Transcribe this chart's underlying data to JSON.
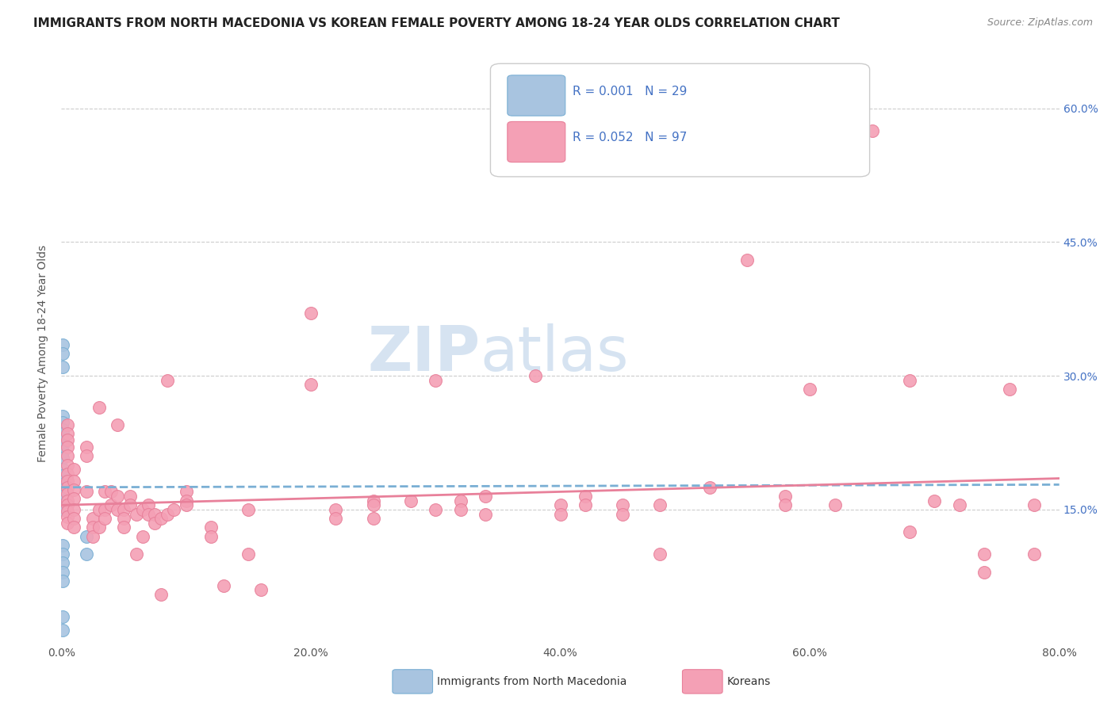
{
  "title": "IMMIGRANTS FROM NORTH MACEDONIA VS KOREAN FEMALE POVERTY AMONG 18-24 YEAR OLDS CORRELATION CHART",
  "source": "Source: ZipAtlas.com",
  "ylabel": "Female Poverty Among 18-24 Year Olds",
  "xlabel_ticks": [
    "0.0%",
    "20.0%",
    "40.0%",
    "60.0%",
    "80.0%"
  ],
  "xlabel_vals": [
    0.0,
    0.2,
    0.4,
    0.6,
    0.8
  ],
  "ylabel_ticks_right": [
    "60.0%",
    "45.0%",
    "30.0%",
    "15.0%"
  ],
  "ylabel_right_vals": [
    0.6,
    0.45,
    0.3,
    0.15
  ],
  "xlim": [
    0.0,
    0.8
  ],
  "ylim": [
    0.0,
    0.65
  ],
  "color_blue": "#a8c4e0",
  "color_pink": "#f4a0b5",
  "edge_blue": "#7aafd4",
  "edge_pink": "#e8809a",
  "trendline_blue_color": "#7aafd4",
  "trendline_pink_color": "#e8809a",
  "watermark": "ZIPatlas",
  "blue_points": [
    [
      0.001,
      0.335
    ],
    [
      0.001,
      0.325
    ],
    [
      0.001,
      0.31
    ],
    [
      0.001,
      0.255
    ],
    [
      0.001,
      0.248
    ],
    [
      0.001,
      0.24
    ],
    [
      0.001,
      0.235
    ],
    [
      0.001,
      0.228
    ],
    [
      0.001,
      0.222
    ],
    [
      0.001,
      0.215
    ],
    [
      0.001,
      0.208
    ],
    [
      0.001,
      0.195
    ],
    [
      0.001,
      0.188
    ],
    [
      0.001,
      0.182
    ],
    [
      0.001,
      0.178
    ],
    [
      0.001,
      0.172
    ],
    [
      0.001,
      0.165
    ],
    [
      0.001,
      0.16
    ],
    [
      0.001,
      0.155
    ],
    [
      0.001,
      0.15
    ],
    [
      0.001,
      0.11
    ],
    [
      0.001,
      0.1
    ],
    [
      0.001,
      0.09
    ],
    [
      0.001,
      0.08
    ],
    [
      0.001,
      0.07
    ],
    [
      0.001,
      0.03
    ],
    [
      0.001,
      0.015
    ],
    [
      0.02,
      0.12
    ],
    [
      0.02,
      0.1
    ]
  ],
  "pink_points": [
    [
      0.005,
      0.245
    ],
    [
      0.005,
      0.235
    ],
    [
      0.005,
      0.228
    ],
    [
      0.005,
      0.22
    ],
    [
      0.005,
      0.21
    ],
    [
      0.005,
      0.2
    ],
    [
      0.005,
      0.19
    ],
    [
      0.005,
      0.182
    ],
    [
      0.005,
      0.175
    ],
    [
      0.005,
      0.168
    ],
    [
      0.005,
      0.16
    ],
    [
      0.005,
      0.155
    ],
    [
      0.005,
      0.148
    ],
    [
      0.005,
      0.142
    ],
    [
      0.005,
      0.135
    ],
    [
      0.01,
      0.195
    ],
    [
      0.01,
      0.182
    ],
    [
      0.01,
      0.172
    ],
    [
      0.01,
      0.162
    ],
    [
      0.01,
      0.15
    ],
    [
      0.01,
      0.14
    ],
    [
      0.01,
      0.13
    ],
    [
      0.02,
      0.22
    ],
    [
      0.02,
      0.21
    ],
    [
      0.02,
      0.17
    ],
    [
      0.025,
      0.14
    ],
    [
      0.025,
      0.13
    ],
    [
      0.025,
      0.12
    ],
    [
      0.03,
      0.265
    ],
    [
      0.03,
      0.15
    ],
    [
      0.03,
      0.13
    ],
    [
      0.035,
      0.17
    ],
    [
      0.035,
      0.15
    ],
    [
      0.035,
      0.14
    ],
    [
      0.04,
      0.17
    ],
    [
      0.04,
      0.155
    ],
    [
      0.045,
      0.245
    ],
    [
      0.045,
      0.165
    ],
    [
      0.045,
      0.15
    ],
    [
      0.05,
      0.15
    ],
    [
      0.05,
      0.14
    ],
    [
      0.05,
      0.13
    ],
    [
      0.055,
      0.165
    ],
    [
      0.055,
      0.155
    ],
    [
      0.06,
      0.145
    ],
    [
      0.06,
      0.1
    ],
    [
      0.065,
      0.15
    ],
    [
      0.065,
      0.12
    ],
    [
      0.07,
      0.155
    ],
    [
      0.07,
      0.145
    ],
    [
      0.075,
      0.145
    ],
    [
      0.075,
      0.135
    ],
    [
      0.08,
      0.055
    ],
    [
      0.08,
      0.14
    ],
    [
      0.085,
      0.295
    ],
    [
      0.085,
      0.145
    ],
    [
      0.09,
      0.15
    ],
    [
      0.1,
      0.17
    ],
    [
      0.1,
      0.16
    ],
    [
      0.1,
      0.155
    ],
    [
      0.12,
      0.13
    ],
    [
      0.12,
      0.12
    ],
    [
      0.13,
      0.065
    ],
    [
      0.15,
      0.15
    ],
    [
      0.15,
      0.1
    ],
    [
      0.16,
      0.06
    ],
    [
      0.2,
      0.37
    ],
    [
      0.2,
      0.29
    ],
    [
      0.22,
      0.15
    ],
    [
      0.22,
      0.14
    ],
    [
      0.25,
      0.16
    ],
    [
      0.25,
      0.155
    ],
    [
      0.25,
      0.14
    ],
    [
      0.28,
      0.16
    ],
    [
      0.3,
      0.295
    ],
    [
      0.3,
      0.15
    ],
    [
      0.32,
      0.16
    ],
    [
      0.32,
      0.15
    ],
    [
      0.34,
      0.165
    ],
    [
      0.34,
      0.145
    ],
    [
      0.38,
      0.3
    ],
    [
      0.4,
      0.155
    ],
    [
      0.4,
      0.145
    ],
    [
      0.42,
      0.165
    ],
    [
      0.42,
      0.155
    ],
    [
      0.45,
      0.155
    ],
    [
      0.45,
      0.145
    ],
    [
      0.48,
      0.155
    ],
    [
      0.48,
      0.1
    ],
    [
      0.52,
      0.175
    ],
    [
      0.55,
      0.43
    ],
    [
      0.58,
      0.165
    ],
    [
      0.58,
      0.155
    ],
    [
      0.6,
      0.285
    ],
    [
      0.62,
      0.155
    ],
    [
      0.65,
      0.575
    ],
    [
      0.68,
      0.295
    ],
    [
      0.68,
      0.125
    ],
    [
      0.7,
      0.16
    ],
    [
      0.72,
      0.155
    ],
    [
      0.74,
      0.1
    ],
    [
      0.74,
      0.08
    ],
    [
      0.76,
      0.285
    ],
    [
      0.78,
      0.155
    ],
    [
      0.78,
      0.1
    ]
  ],
  "blue_trend_x": [
    0.0,
    0.8
  ],
  "blue_trend_y": [
    0.175,
    0.178
  ],
  "pink_trend_x": [
    0.0,
    0.8
  ],
  "pink_trend_y": [
    0.155,
    0.185
  ],
  "legend_color": "#4472c4",
  "grid_color": "#cccccc",
  "title_fontsize": 11,
  "axis_fontsize": 10
}
